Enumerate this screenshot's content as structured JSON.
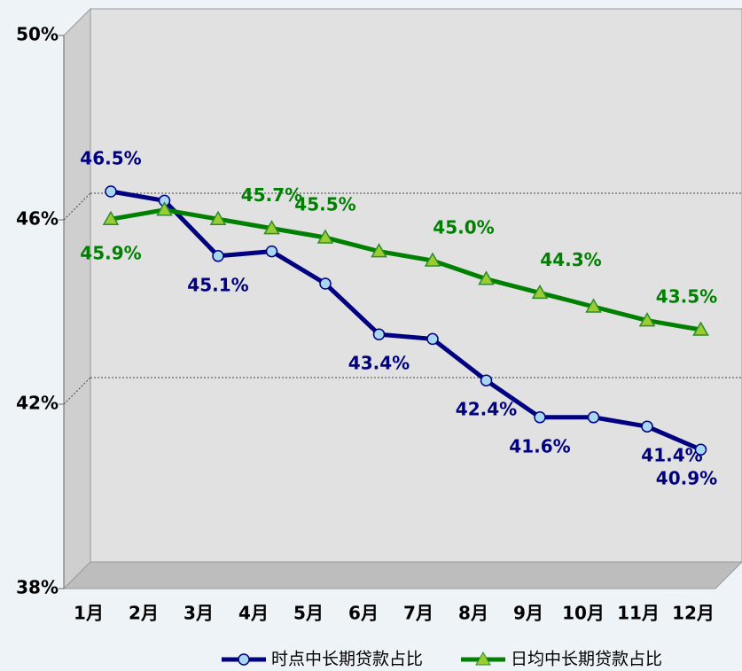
{
  "chart_data": {
    "type": "line",
    "categories": [
      "1月",
      "2月",
      "3月",
      "4月",
      "5月",
      "6月",
      "7月",
      "8月",
      "9月",
      "10月",
      "11月",
      "12月"
    ],
    "series": [
      {
        "name": "时点中长期贷款占比",
        "color": "#000080",
        "values": [
          46.5,
          46.3,
          45.1,
          45.2,
          44.5,
          43.4,
          43.3,
          42.4,
          41.6,
          41.6,
          41.4,
          40.9
        ],
        "value_labels": [
          "46.5%",
          null,
          "45.1%",
          null,
          null,
          "43.4%",
          null,
          "42.4%",
          "41.6%",
          null,
          "41.4%",
          "40.9%"
        ]
      },
      {
        "name": "日均中长期贷款占比",
        "color": "#008000",
        "values": [
          45.9,
          46.1,
          45.9,
          45.7,
          45.5,
          45.2,
          45.0,
          44.6,
          44.3,
          44.0,
          43.7,
          43.5
        ],
        "value_labels": [
          "45.9%",
          null,
          null,
          "45.7%",
          "45.5%",
          null,
          "45.0%",
          null,
          "44.3%",
          null,
          null,
          "43.5%"
        ]
      }
    ],
    "ylim": [
      38,
      50
    ],
    "yticks": [
      {
        "value": 38,
        "label": "38%"
      },
      {
        "value": 42,
        "label": "42%"
      },
      {
        "value": 46,
        "label": "46%"
      },
      {
        "value": 50,
        "label": "50%"
      }
    ],
    "grid": true,
    "legend": "bottom"
  }
}
